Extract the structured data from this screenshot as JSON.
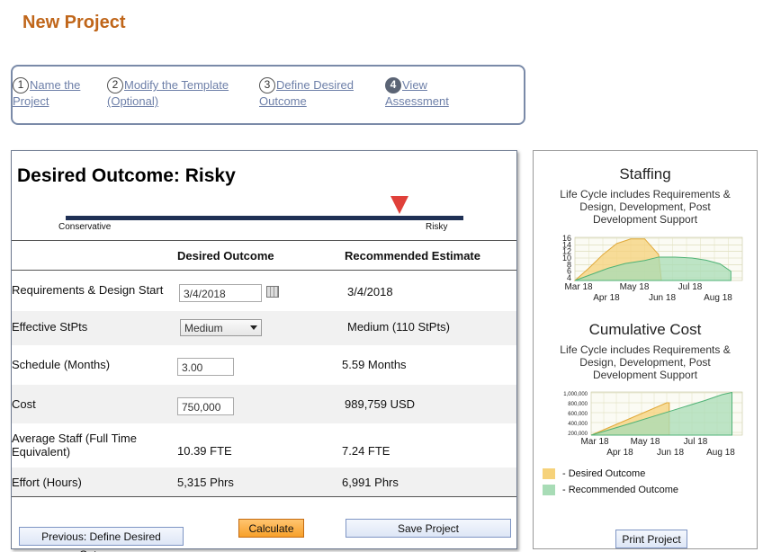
{
  "page": {
    "title": "New Project"
  },
  "wizard": {
    "steps": [
      {
        "num": "1",
        "line1": "Name the",
        "line2": "Project"
      },
      {
        "num": "2",
        "line1": "Modify the Template",
        "line2": "(Optional)"
      },
      {
        "num": "3",
        "line1": "Define Desired",
        "line2": "Outcome"
      },
      {
        "num": "4",
        "line1": "View",
        "line2": "Assessment"
      }
    ]
  },
  "outcome": {
    "title": "Desired Outcome: Risky",
    "scale_left": "Conservative",
    "scale_right": "Risky",
    "marker_position": 0.84,
    "columns": {
      "desired": "Desired Outcome",
      "recommended": "Recommended Estimate"
    },
    "rows": [
      {
        "label": "Requirements & Design Start",
        "desired_value": "3/4/2018",
        "recommended": "3/4/2018"
      },
      {
        "label": "Effective StPts",
        "desired_value": "Medium",
        "recommended": "Medium (110 StPts)"
      },
      {
        "label": "Schedule (Months)",
        "desired_value": "3.00",
        "recommended": "5.59 Months"
      },
      {
        "label": "Cost",
        "desired_value": "750,000",
        "recommended": "989,759 USD"
      },
      {
        "label_line1": "Average Staff (Full Time",
        "label_line2": "Equivalent)",
        "desired_value": "10.39 FTE",
        "recommended": "7.24 FTE"
      },
      {
        "label": "Effort (Hours)",
        "desired_value": "5,315 Phrs",
        "recommended": "6,991 Phrs"
      }
    ],
    "buttons": {
      "previous": "Previous: Define Desired Outcome",
      "calculate": "Calculate",
      "save": "Save Project"
    }
  },
  "side": {
    "staffing_title": "Staffing",
    "staffing_sub": [
      "Life Cycle includes Requirements &",
      "Design, Development, Post",
      "Development Support"
    ],
    "cost_title": "Cumulative Cost",
    "cost_sub": [
      "Life Cycle includes Requirements &",
      "Design, Development, Post",
      "Development Support"
    ],
    "legend": {
      "desired": "- Desired Outcome",
      "recommended": "- Recommended Outcome"
    },
    "print_label": "Print Project",
    "colors": {
      "desired": "#f6d27a",
      "recommended": "#a8dcb6"
    }
  },
  "chart_data": [
    {
      "type": "area",
      "title": "Staffing",
      "subtitle": "Life Cycle includes Requirements & Design, Development, Post Development Support",
      "y_ticks": [
        "16",
        "14",
        "12",
        "10",
        "8",
        "6",
        "4"
      ],
      "ylim": [
        2,
        16
      ],
      "x_ticks_top": [
        "Mar 18",
        "May 18",
        "Jul 18"
      ],
      "x_ticks_bottom": [
        "Apr 18",
        "Jun 18",
        "Aug 18"
      ],
      "series": [
        {
          "name": "Desired Outcome",
          "x": [
            0,
            0.5,
            1,
            1.5,
            2,
            2.5,
            3,
            3.1
          ],
          "y": [
            2,
            6,
            10.4,
            14,
            15.5,
            15.5,
            10.4,
            2
          ]
        },
        {
          "name": "Recommended Outcome",
          "x": [
            0,
            0.6,
            1.2,
            1.8,
            2.5,
            3.0,
            3.6,
            4.2,
            4.7,
            5.2,
            5.59
          ],
          "y": [
            2,
            4,
            6,
            7.5,
            8.5,
            9.6,
            9.6,
            9.3,
            8.6,
            7.4,
            5
          ]
        }
      ]
    },
    {
      "type": "area",
      "title": "Cumulative Cost",
      "subtitle": "Life Cycle includes Requirements & Design, Development, Post Development Support",
      "y_ticks": [
        "1,000,000",
        "800,000",
        "600,000",
        "400,000",
        "200,000"
      ],
      "ylim": [
        0,
        1000000
      ],
      "x_ticks_top": [
        "Mar 18",
        "May 18",
        "Jul 18"
      ],
      "x_ticks_bottom": [
        "Apr 18",
        "Jun 18",
        "Aug 18"
      ],
      "series": [
        {
          "name": "Desired Outcome",
          "x": [
            0,
            1.5,
            3,
            3.1
          ],
          "y": [
            0,
            375000,
            750000,
            750000
          ]
        },
        {
          "name": "Recommended Outcome",
          "x": [
            0,
            1.5,
            3,
            4.5,
            5.2,
            5.59
          ],
          "y": [
            0,
            260000,
            530000,
            800000,
            940000,
            989759
          ]
        }
      ]
    }
  ]
}
